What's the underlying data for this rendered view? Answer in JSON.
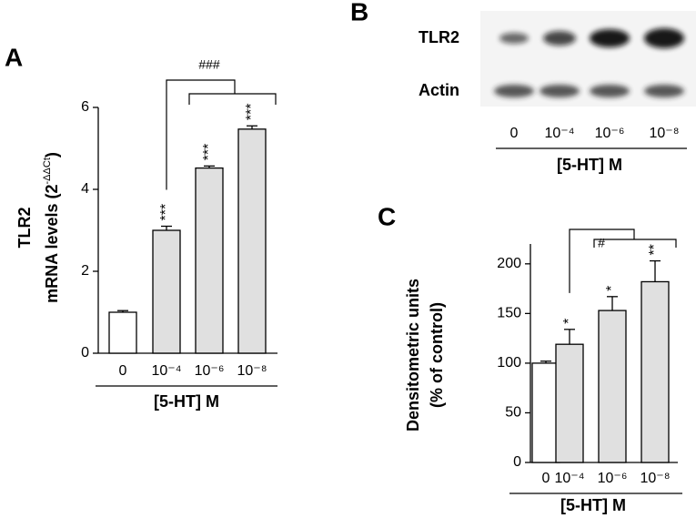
{
  "chart_data": [
    {
      "type": "bar",
      "panel": "A",
      "ylabel": [
        "TLR2",
        "mRNA levels (2",
        "-ΔΔCt",
        ")"
      ],
      "xlabel": "[5-HT] M",
      "categories": [
        "0",
        "10⁻⁴",
        "10⁻⁶",
        "10⁻⁸"
      ],
      "series": [
        {
          "colors": [
            "#ffffff",
            "#e0e0e0",
            "#e0e0e0",
            "#e0e0e0"
          ],
          "values": [
            1.0,
            3.0,
            4.52,
            5.47
          ],
          "errors": [
            0.04,
            0.1,
            0.05,
            0.08
          ]
        }
      ],
      "significance": [
        null,
        "***",
        "***",
        "***"
      ],
      "bracket_label": "###",
      "ylim": [
        0,
        6
      ],
      "yticks": [
        0,
        2,
        4,
        6
      ]
    },
    {
      "type": "bar",
      "panel": "C",
      "ylabel": [
        "Densitometric units",
        "(% of control)"
      ],
      "xlabel": "[5-HT] M",
      "categories": [
        "0",
        "10⁻⁴",
        "10⁻⁶",
        "10⁻⁸"
      ],
      "series": [
        {
          "colors": [
            "#ffffff",
            "#e0e0e0",
            "#e0e0e0",
            "#e0e0e0"
          ],
          "values": [
            100,
            119,
            153,
            182
          ],
          "errors": [
            2,
            15,
            14,
            21
          ]
        }
      ],
      "significance": [
        null,
        "*",
        "*",
        "**"
      ],
      "bracket_label": "#",
      "ylim": [
        0,
        220
      ],
      "yticks": [
        0,
        50,
        100,
        150,
        200
      ]
    }
  ],
  "blot": {
    "panel": "B",
    "rows": [
      "TLR2",
      "Actin"
    ],
    "categories": [
      "0",
      "10⁻⁴",
      "10⁻⁶",
      "10⁻⁸"
    ],
    "xlabel": "[5-HT] M"
  }
}
